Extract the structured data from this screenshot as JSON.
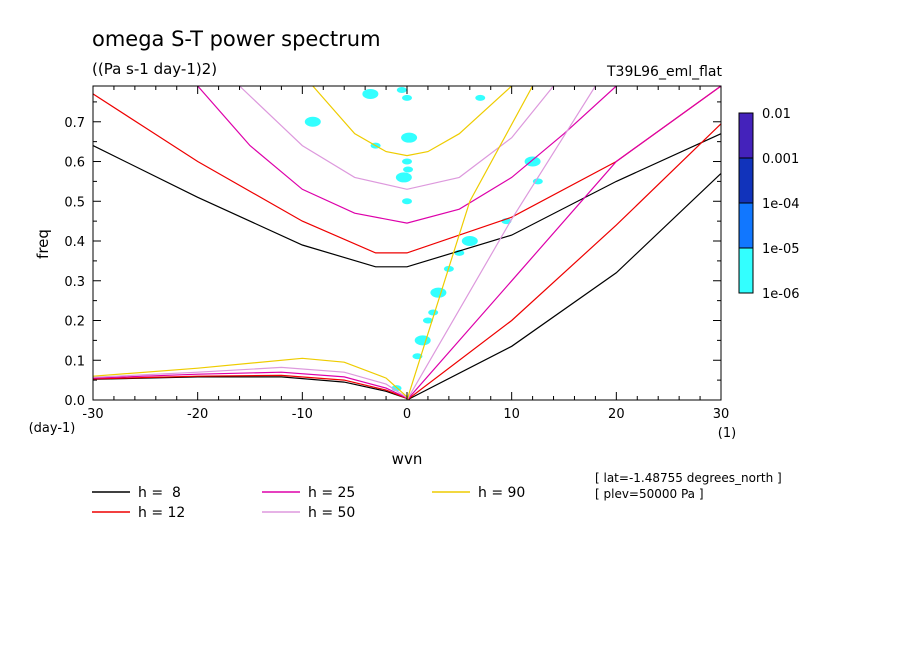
{
  "chart_data": {
    "type": "line",
    "title": "omega S-T power spectrum",
    "subtitle": "((Pa s-1 day-1)2)",
    "experiment": "T39L96_eml_flat",
    "xlabel": "wvn",
    "ylabel": "freq",
    "x_unit": "(1)",
    "y_unit": "(day-1)",
    "xlim": [
      -30,
      30
    ],
    "ylim": [
      0,
      0.79
    ],
    "xticks": [
      -30,
      -20,
      -10,
      0,
      10,
      20,
      30
    ],
    "yticks": [
      0,
      0.1,
      0.2,
      0.3,
      0.4,
      0.5,
      0.6,
      0.7
    ],
    "grid": false,
    "legend_placement": "bottom",
    "info": [
      "[ lat=-1.48755 degrees_north ]",
      "[ plev=50000 Pa ]"
    ],
    "series": [
      {
        "name": "h =  8",
        "color": "#000000",
        "h": 8,
        "kelvin": [
          [
            0,
            0
          ],
          [
            10,
            0.135
          ],
          [
            20,
            0.32
          ],
          [
            30,
            0.57
          ]
        ],
        "rossby": [
          [
            -30,
            0.052
          ],
          [
            -20,
            0.058
          ],
          [
            -12,
            0.058
          ],
          [
            -6,
            0.045
          ],
          [
            -2,
            0.022
          ],
          [
            0,
            0.004
          ]
        ],
        "ig": [
          [
            -30,
            0.64
          ],
          [
            -20,
            0.51
          ],
          [
            -10,
            0.39
          ],
          [
            -3,
            0.335
          ],
          [
            0,
            0.335
          ],
          [
            10,
            0.415
          ],
          [
            20,
            0.55
          ],
          [
            30,
            0.67
          ]
        ]
      },
      {
        "name": "h = 12",
        "color": "#ee0000",
        "h": 12,
        "kelvin": [
          [
            0,
            0
          ],
          [
            10,
            0.2
          ],
          [
            20,
            0.44
          ],
          [
            30,
            0.695
          ]
        ],
        "rossby": [
          [
            -30,
            0.053
          ],
          [
            -20,
            0.06
          ],
          [
            -12,
            0.062
          ],
          [
            -6,
            0.05
          ],
          [
            -2,
            0.025
          ],
          [
            0,
            0.004
          ]
        ],
        "ig": [
          [
            -30,
            0.77
          ],
          [
            -20,
            0.6
          ],
          [
            -10,
            0.45
          ],
          [
            -3,
            0.37
          ],
          [
            0,
            0.37
          ],
          [
            10,
            0.46
          ],
          [
            20,
            0.6
          ],
          [
            30,
            0.79
          ]
        ]
      },
      {
        "name": "h = 25",
        "color": "#dd00aa",
        "h": 25,
        "kelvin": [
          [
            0,
            0
          ],
          [
            10,
            0.3
          ],
          [
            20,
            0.6
          ],
          [
            30,
            0.79
          ]
        ],
        "rossby": [
          [
            -30,
            0.055
          ],
          [
            -20,
            0.065
          ],
          [
            -12,
            0.07
          ],
          [
            -6,
            0.058
          ],
          [
            -2,
            0.03
          ],
          [
            0,
            0.005
          ]
        ],
        "ig": [
          [
            -20,
            0.79
          ],
          [
            -15,
            0.64
          ],
          [
            -10,
            0.53
          ],
          [
            -5,
            0.47
          ],
          [
            0,
            0.445
          ],
          [
            5,
            0.48
          ],
          [
            10,
            0.56
          ],
          [
            15,
            0.67
          ],
          [
            20,
            0.79
          ]
        ]
      },
      {
        "name": "h = 50",
        "color": "#dd99dd",
        "h": 50,
        "kelvin": [
          [
            0,
            0
          ],
          [
            10,
            0.455
          ],
          [
            18,
            0.79
          ]
        ],
        "rossby": [
          [
            -30,
            0.057
          ],
          [
            -20,
            0.07
          ],
          [
            -12,
            0.082
          ],
          [
            -6,
            0.07
          ],
          [
            -2,
            0.04
          ],
          [
            0,
            0.006
          ]
        ],
        "ig": [
          [
            -16,
            0.79
          ],
          [
            -10,
            0.64
          ],
          [
            -5,
            0.56
          ],
          [
            0,
            0.53
          ],
          [
            5,
            0.56
          ],
          [
            10,
            0.66
          ],
          [
            14,
            0.79
          ]
        ]
      },
      {
        "name": "h = 90",
        "color": "#eecc00",
        "h": 90,
        "kelvin": [
          [
            0,
            0
          ],
          [
            6,
            0.5
          ],
          [
            12,
            0.79
          ]
        ],
        "rossby": [
          [
            -30,
            0.06
          ],
          [
            -20,
            0.08
          ],
          [
            -10,
            0.105
          ],
          [
            -6,
            0.095
          ],
          [
            -2,
            0.055
          ],
          [
            0,
            0.008
          ]
        ],
        "ig": [
          [
            -9,
            0.79
          ],
          [
            -5,
            0.67
          ],
          [
            -2,
            0.625
          ],
          [
            0,
            0.615
          ],
          [
            2,
            0.625
          ],
          [
            5,
            0.67
          ],
          [
            10,
            0.79
          ]
        ]
      }
    ],
    "power_contours": [
      {
        "x": -3.5,
        "y": 0.77,
        "level": "1e-06"
      },
      {
        "x": -0.5,
        "y": 0.78,
        "level": "1e-06"
      },
      {
        "x": 0,
        "y": 0.76,
        "level": "1e-06"
      },
      {
        "x": 0.2,
        "y": 0.66,
        "level": "1e-06"
      },
      {
        "x": 0,
        "y": 0.6,
        "level": "1e-06"
      },
      {
        "x": 0.1,
        "y": 0.58,
        "level": "1e-06"
      },
      {
        "x": -0.3,
        "y": 0.56,
        "level": "1e-06"
      },
      {
        "x": 0,
        "y": 0.5,
        "level": "1e-06"
      },
      {
        "x": 7,
        "y": 0.76,
        "level": "1e-06"
      },
      {
        "x": 12,
        "y": 0.6,
        "level": "1e-06"
      },
      {
        "x": 12.5,
        "y": 0.55,
        "level": "1e-06"
      },
      {
        "x": 9.5,
        "y": 0.45,
        "level": "1e-06"
      },
      {
        "x": 6,
        "y": 0.4,
        "level": "1e-06"
      },
      {
        "x": 5,
        "y": 0.37,
        "level": "1e-06"
      },
      {
        "x": 4,
        "y": 0.33,
        "level": "1e-06"
      },
      {
        "x": 3,
        "y": 0.27,
        "level": "1e-06"
      },
      {
        "x": 2.5,
        "y": 0.22,
        "level": "1e-06"
      },
      {
        "x": 2,
        "y": 0.2,
        "level": "1e-06"
      },
      {
        "x": 1.5,
        "y": 0.15,
        "level": "1e-06"
      },
      {
        "x": 1,
        "y": 0.11,
        "level": "1e-06"
      },
      {
        "x": -3,
        "y": 0.64,
        "level": "1e-06"
      },
      {
        "x": -9,
        "y": 0.7,
        "level": "1e-06"
      },
      {
        "x": -1,
        "y": 0.03,
        "level": "1e-06"
      }
    ],
    "colorbar": {
      "levels": [
        "0.01",
        "0.001",
        "1e-04",
        "1e-05",
        "1e-06"
      ],
      "colors": [
        "#4422bb",
        "#1133bb",
        "#1177ff",
        "#33ffff"
      ]
    }
  }
}
